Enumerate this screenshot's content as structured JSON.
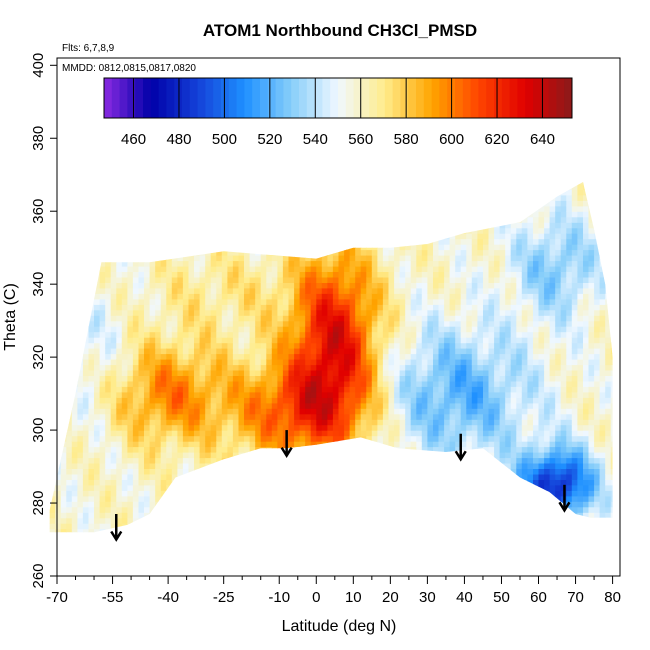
{
  "chart_data": {
    "type": "heatmap",
    "title": "ATOM1 Northbound CH3Cl_PMSD",
    "flights_label": "Flts: 6,7,8,9",
    "dates_label": "MMDD: 0812,0815,0817,0820",
    "xlabel": "Latitude (deg N)",
    "ylabel": "Theta (C)",
    "xlim": [
      -70,
      82
    ],
    "ylim": [
      260,
      402
    ],
    "x_ticks": [
      -70,
      -55,
      -40,
      -25,
      -10,
      0,
      10,
      20,
      30,
      40,
      50,
      60,
      70,
      80
    ],
    "x_tick_labels": [
      "-70",
      "-55",
      "-40",
      "-25",
      "-10",
      "0",
      "10",
      "20",
      "30",
      "40",
      "50",
      "60",
      "70",
      "80"
    ],
    "y_ticks": [
      260,
      280,
      300,
      320,
      340,
      360,
      380,
      400
    ],
    "y_tick_labels": [
      "260",
      "280",
      "300",
      "320",
      "340",
      "360",
      "380",
      "400"
    ],
    "colorbar": {
      "range": [
        447,
        653
      ],
      "ticks": [
        460,
        480,
        500,
        520,
        540,
        560,
        580,
        600,
        620,
        640
      ],
      "tick_labels": [
        "460",
        "480",
        "500",
        "520",
        "540",
        "560",
        "580",
        "600",
        "620",
        "640"
      ],
      "colors": [
        "#8b2be2",
        "#0000a8",
        "#1440d8",
        "#1e90ff",
        "#87cefa",
        "#f0f8ff",
        "#ffec8b",
        "#ffa500",
        "#ff4500",
        "#e00000",
        "#8b1a1a"
      ]
    },
    "lower_boundary": [
      [
        -72,
        272
      ],
      [
        -60,
        272
      ],
      [
        -51,
        274
      ],
      [
        -45,
        277
      ],
      [
        -38,
        287
      ],
      [
        -25,
        292
      ],
      [
        -15,
        295
      ],
      [
        -8,
        295
      ],
      [
        0,
        296
      ],
      [
        12,
        298
      ],
      [
        22,
        295
      ],
      [
        35,
        294
      ],
      [
        45,
        295
      ],
      [
        55,
        287
      ],
      [
        63,
        283
      ],
      [
        70,
        277
      ],
      [
        74,
        276
      ],
      [
        80,
        276
      ]
    ],
    "upper_boundary": [
      [
        -72,
        278
      ],
      [
        -65,
        310
      ],
      [
        -58,
        346
      ],
      [
        -45,
        346
      ],
      [
        -25,
        349
      ],
      [
        0,
        347
      ],
      [
        10,
        350
      ],
      [
        20,
        350
      ],
      [
        30,
        351
      ],
      [
        40,
        354
      ],
      [
        55,
        357
      ],
      [
        65,
        364
      ],
      [
        72,
        368
      ],
      [
        75,
        355
      ],
      [
        78,
        340
      ],
      [
        80,
        320
      ],
      [
        80,
        276
      ]
    ],
    "anomalies": [
      {
        "lat": -25,
        "theta": 338,
        "value": 570,
        "spread_lat": 20,
        "spread_theta": 12
      },
      {
        "lat": 5,
        "theta": 325,
        "value": 628,
        "spread_lat": 12,
        "spread_theta": 24
      },
      {
        "lat": -5,
        "theta": 305,
        "value": 606,
        "spread_lat": 18,
        "spread_theta": 14
      },
      {
        "lat": -40,
        "theta": 310,
        "value": 598,
        "spread_lat": 16,
        "spread_theta": 14
      },
      {
        "lat": -60,
        "theta": 320,
        "value": 545,
        "spread_lat": 10,
        "spread_theta": 20
      },
      {
        "lat": 38,
        "theta": 310,
        "value": 520,
        "spread_lat": 20,
        "spread_theta": 18
      },
      {
        "lat": 65,
        "theta": 285,
        "value": 480,
        "spread_lat": 10,
        "spread_theta": 10
      },
      {
        "lat": 65,
        "theta": 345,
        "value": 528,
        "spread_lat": 12,
        "spread_theta": 14
      }
    ],
    "arrows": [
      {
        "lat": -54,
        "theta_top": 277,
        "theta_tip": 270
      },
      {
        "lat": -8,
        "theta_top": 300,
        "theta_tip": 293
      },
      {
        "lat": 39,
        "theta_top": 299,
        "theta_tip": 292
      },
      {
        "lat": 67,
        "theta_top": 285,
        "theta_tip": 278
      }
    ]
  }
}
